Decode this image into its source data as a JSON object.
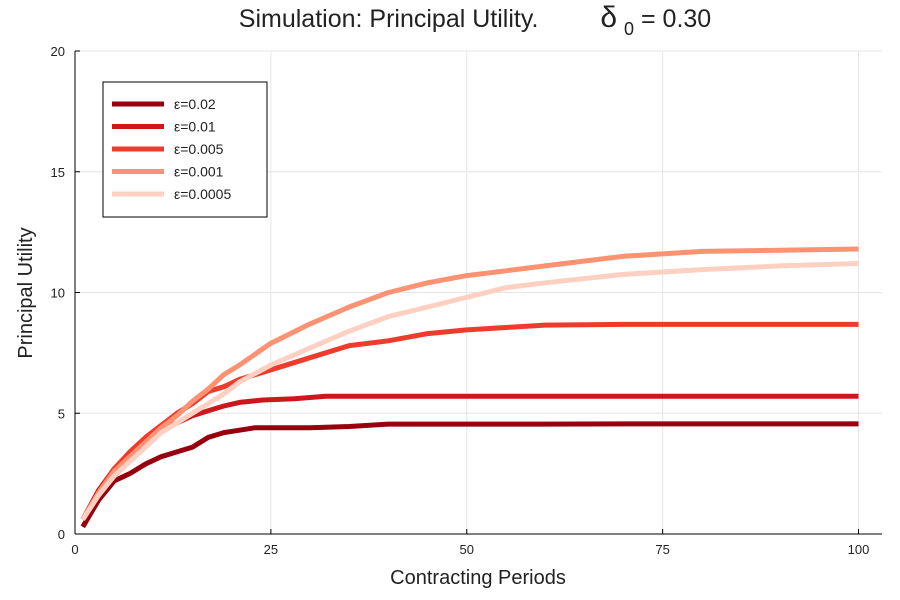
{
  "chart_data": {
    "type": "line",
    "title": "Simulation: Principal Utility.",
    "title_delta_symbol": "δ",
    "title_delta_subscript": "0",
    "title_delta_value": " = 0.30",
    "xlabel": "Contracting Periods",
    "ylabel": "Principal Utility",
    "xlim": [
      0,
      103
    ],
    "ylim": [
      0,
      20
    ],
    "xticks": [
      0,
      25,
      50,
      75,
      100
    ],
    "yticks": [
      0,
      5,
      10,
      15,
      20
    ],
    "grid": true,
    "legend_position": "top-left",
    "series": [
      {
        "name": "ε=0.02",
        "color": "#99000d",
        "points": [
          [
            1,
            0.3
          ],
          [
            3,
            1.4
          ],
          [
            5,
            2.2
          ],
          [
            7,
            2.5
          ],
          [
            9,
            2.9
          ],
          [
            11,
            3.2
          ],
          [
            13,
            3.4
          ],
          [
            15,
            3.6
          ],
          [
            17,
            4.0
          ],
          [
            19,
            4.2
          ],
          [
            21,
            4.3
          ],
          [
            23,
            4.4
          ],
          [
            25,
            4.4
          ],
          [
            30,
            4.4
          ],
          [
            35,
            4.45
          ],
          [
            40,
            4.55
          ],
          [
            50,
            4.55
          ],
          [
            60,
            4.55
          ],
          [
            70,
            4.56
          ],
          [
            80,
            4.56
          ],
          [
            90,
            4.56
          ],
          [
            100,
            4.56
          ]
        ]
      },
      {
        "name": "ε=0.01",
        "color": "#cb181d",
        "points": [
          [
            1,
            0.6
          ],
          [
            3,
            1.8
          ],
          [
            5,
            2.7
          ],
          [
            7,
            3.3
          ],
          [
            9,
            3.9
          ],
          [
            11,
            4.3
          ],
          [
            13,
            4.6
          ],
          [
            15,
            4.9
          ],
          [
            17,
            5.1
          ],
          [
            19,
            5.3
          ],
          [
            21,
            5.45
          ],
          [
            24,
            5.55
          ],
          [
            28,
            5.6
          ],
          [
            32,
            5.7
          ],
          [
            40,
            5.7
          ],
          [
            50,
            5.7
          ],
          [
            60,
            5.7
          ],
          [
            70,
            5.7
          ],
          [
            80,
            5.7
          ],
          [
            90,
            5.7
          ],
          [
            100,
            5.7
          ]
        ]
      },
      {
        "name": "ε=0.005",
        "color": "#ef3b2c",
        "points": [
          [
            1,
            0.6
          ],
          [
            3,
            1.7
          ],
          [
            5,
            2.7
          ],
          [
            7,
            3.4
          ],
          [
            9,
            4.0
          ],
          [
            11,
            4.5
          ],
          [
            13,
            5.0
          ],
          [
            15,
            5.4
          ],
          [
            17,
            5.9
          ],
          [
            19,
            6.1
          ],
          [
            21,
            6.4
          ],
          [
            25,
            6.8
          ],
          [
            30,
            7.3
          ],
          [
            35,
            7.8
          ],
          [
            40,
            8.0
          ],
          [
            45,
            8.3
          ],
          [
            50,
            8.45
          ],
          [
            55,
            8.55
          ],
          [
            60,
            8.65
          ],
          [
            70,
            8.68
          ],
          [
            80,
            8.68
          ],
          [
            90,
            8.68
          ],
          [
            100,
            8.68
          ]
        ]
      },
      {
        "name": "ε=0.001",
        "color": "#fc9272",
        "points": [
          [
            1,
            0.6
          ],
          [
            3,
            1.7
          ],
          [
            5,
            2.6
          ],
          [
            7,
            3.2
          ],
          [
            9,
            3.8
          ],
          [
            11,
            4.4
          ],
          [
            13,
            4.9
          ],
          [
            15,
            5.5
          ],
          [
            17,
            6.0
          ],
          [
            19,
            6.6
          ],
          [
            21,
            7.0
          ],
          [
            25,
            7.9
          ],
          [
            30,
            8.7
          ],
          [
            35,
            9.4
          ],
          [
            40,
            10.0
          ],
          [
            45,
            10.4
          ],
          [
            50,
            10.7
          ],
          [
            55,
            10.9
          ],
          [
            60,
            11.1
          ],
          [
            70,
            11.5
          ],
          [
            80,
            11.7
          ],
          [
            90,
            11.75
          ],
          [
            100,
            11.8
          ]
        ]
      },
      {
        "name": "ε=0.0005",
        "color": "#fdd0c1",
        "points": [
          [
            1,
            0.6
          ],
          [
            3,
            1.6
          ],
          [
            5,
            2.4
          ],
          [
            7,
            3.0
          ],
          [
            9,
            3.6
          ],
          [
            11,
            4.2
          ],
          [
            13,
            4.6
          ],
          [
            15,
            5.0
          ],
          [
            17,
            5.4
          ],
          [
            19,
            5.8
          ],
          [
            21,
            6.3
          ],
          [
            25,
            7.0
          ],
          [
            30,
            7.7
          ],
          [
            35,
            8.4
          ],
          [
            40,
            9.0
          ],
          [
            45,
            9.4
          ],
          [
            50,
            9.8
          ],
          [
            55,
            10.2
          ],
          [
            60,
            10.4
          ],
          [
            70,
            10.75
          ],
          [
            80,
            10.95
          ],
          [
            90,
            11.1
          ],
          [
            100,
            11.2
          ]
        ]
      }
    ]
  }
}
